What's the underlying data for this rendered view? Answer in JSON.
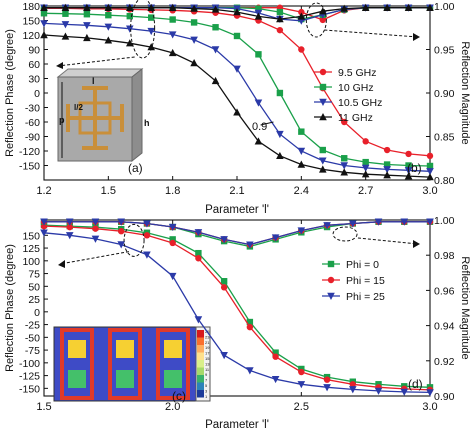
{
  "chart_data": [
    {
      "type": "line",
      "panel_label": "(b)",
      "inset_label": "(a)",
      "inset_dims": {
        "l": "l",
        "l2": "l/2",
        "p": "p",
        "h": "h"
      },
      "annotation": "0.9",
      "xlabel": "Parameter 'l'",
      "ylabel_left": "Reflection Phase (degree)",
      "ylabel_right": "Reflection Magnitude",
      "xlim": [
        1.2,
        3.0
      ],
      "ylim_left": [
        -180,
        180
      ],
      "ylim_right": [
        0.8,
        1.0
      ],
      "xticks": [
        "1.2",
        "1.5",
        "1.8",
        "2.1",
        "2.4",
        "2.7",
        "3.0"
      ],
      "yticks_left": [
        "180",
        "150",
        "120",
        "90",
        "60",
        "30",
        "0",
        "-30",
        "-60",
        "-90",
        "-120",
        "-150"
      ],
      "yticks_right": [
        "1.00",
        "0.95",
        "0.90",
        "0.85",
        "0.80"
      ],
      "legend_position": "right",
      "grid": false,
      "x": [
        1.2,
        1.3,
        1.4,
        1.5,
        1.6,
        1.7,
        1.8,
        1.9,
        2.0,
        2.1,
        2.2,
        2.3,
        2.4,
        2.5,
        2.6,
        2.7,
        2.8,
        2.9,
        3.0
      ],
      "series": [
        {
          "name": "9.5 GHz",
          "marker": "circle",
          "color": "#e8202a",
          "axis": "left",
          "values": [
            175,
            175,
            174,
            174,
            173,
            172,
            171,
            169,
            166,
            160,
            150,
            130,
            90,
            10,
            -60,
            -100,
            -118,
            -126,
            -130
          ]
        },
        {
          "name": "10 GHz",
          "marker": "square",
          "color": "#1aa04a",
          "axis": "left",
          "values": [
            165,
            164,
            163,
            161,
            159,
            156,
            152,
            146,
            136,
            118,
            80,
            0,
            -80,
            -118,
            -135,
            -143,
            -148,
            -150,
            -151
          ]
        },
        {
          "name": "10.5 GHz",
          "marker": "triangle-down",
          "color": "#2b3aa8",
          "axis": "left",
          "values": [
            144,
            142,
            140,
            137,
            133,
            128,
            121,
            110,
            90,
            50,
            -20,
            -85,
            -120,
            -140,
            -150,
            -155,
            -158,
            -160,
            -162
          ]
        },
        {
          "name": "11 GHz",
          "marker": "triangle-up",
          "color": "#111111",
          "axis": "left",
          "values": [
            120,
            117,
            114,
            109,
            103,
            95,
            83,
            62,
            25,
            -40,
            -100,
            -130,
            -148,
            -158,
            -164,
            -168,
            -170,
            -172,
            -174
          ]
        },
        {
          "name": "",
          "marker": "circle",
          "color": "#e8202a",
          "axis": "right",
          "values": [
            0.998,
            0.998,
            0.998,
            0.998,
            0.998,
            0.998,
            0.998,
            0.998,
            0.998,
            0.998,
            0.998,
            0.998,
            0.993,
            0.984,
            0.995,
            0.998,
            0.998,
            0.998,
            0.998
          ]
        },
        {
          "name": "",
          "marker": "square",
          "color": "#1aa04a",
          "axis": "right",
          "values": [
            0.998,
            0.998,
            0.998,
            0.998,
            0.998,
            0.998,
            0.998,
            0.998,
            0.998,
            0.998,
            0.997,
            0.993,
            0.985,
            0.99,
            0.996,
            0.998,
            0.998,
            0.998,
            0.998
          ]
        },
        {
          "name": "",
          "marker": "triangle-down",
          "color": "#2b3aa8",
          "axis": "right",
          "values": [
            0.998,
            0.998,
            0.998,
            0.998,
            0.998,
            0.998,
            0.998,
            0.998,
            0.998,
            0.997,
            0.992,
            0.985,
            0.983,
            0.99,
            0.996,
            0.998,
            0.998,
            0.998,
            0.998
          ]
        },
        {
          "name": "",
          "marker": "triangle-up",
          "color": "#111111",
          "axis": "right",
          "values": [
            0.998,
            0.998,
            0.998,
            0.998,
            0.998,
            0.998,
            0.998,
            0.997,
            0.996,
            0.993,
            0.988,
            0.985,
            0.988,
            0.994,
            0.997,
            0.998,
            0.998,
            0.998,
            0.998
          ]
        }
      ]
    },
    {
      "type": "line",
      "panel_label": "(d)",
      "inset_label": "(c)",
      "xlabel": "Parameter 'l'",
      "ylabel_left": "Reflection Phase (degree)",
      "ylabel_right": "Reflection Magnitude",
      "xlim": [
        1.5,
        3.0
      ],
      "ylim_left": [
        -165,
        180
      ],
      "ylim_right": [
        0.9,
        1.0
      ],
      "xticks": [
        "1.5",
        "2.0",
        "2.5",
        "3.0"
      ],
      "yticks_left": [
        "150",
        "125",
        "100",
        "75",
        "50",
        "25",
        "0",
        "-25",
        "-50",
        "-75",
        "-100",
        "-125",
        "-150"
      ],
      "yticks_right": [
        "1.00",
        "0.98",
        "0.96",
        "0.94",
        "0.92",
        "0.90"
      ],
      "legend_position": "right",
      "grid": false,
      "x": [
        1.5,
        1.6,
        1.7,
        1.8,
        1.9,
        2.0,
        2.1,
        2.2,
        2.3,
        2.4,
        2.5,
        2.6,
        2.7,
        2.8,
        2.9,
        3.0
      ],
      "series": [
        {
          "name": "Phi = 0",
          "marker": "square",
          "color": "#1aa04a",
          "axis": "left",
          "values": [
            170,
            168,
            166,
            162,
            155,
            142,
            115,
            60,
            -20,
            -80,
            -112,
            -128,
            -137,
            -142,
            -146,
            -148
          ]
        },
        {
          "name": "Phi = 15",
          "marker": "circle",
          "color": "#e8202a",
          "axis": "left",
          "values": [
            168,
            166,
            163,
            158,
            150,
            135,
            105,
            48,
            -30,
            -88,
            -118,
            -133,
            -142,
            -148,
            -151,
            -153
          ]
        },
        {
          "name": "Phi = 25",
          "marker": "triangle-down",
          "color": "#2b3aa8",
          "axis": "left",
          "values": [
            155,
            150,
            143,
            132,
            112,
            70,
            -15,
            -85,
            -115,
            -132,
            -142,
            -148,
            -152,
            -155,
            -157,
            -158
          ]
        },
        {
          "name": "",
          "marker": "square",
          "color": "#1aa04a",
          "axis": "right",
          "values": [
            0.999,
            0.999,
            0.999,
            0.999,
            0.998,
            0.996,
            0.992,
            0.988,
            0.985,
            0.989,
            0.993,
            0.996,
            0.998,
            0.999,
            0.999,
            0.999
          ]
        },
        {
          "name": "",
          "marker": "circle",
          "color": "#e8202a",
          "axis": "right",
          "values": [
            0.999,
            0.999,
            0.999,
            0.999,
            0.998,
            0.996,
            0.993,
            0.989,
            0.986,
            0.99,
            0.994,
            0.997,
            0.998,
            0.999,
            0.999,
            0.999
          ]
        },
        {
          "name": "",
          "marker": "triangle-down",
          "color": "#2b3aa8",
          "axis": "right",
          "values": [
            0.999,
            0.999,
            0.999,
            0.999,
            0.998,
            0.996,
            0.993,
            0.989,
            0.986,
            0.99,
            0.994,
            0.997,
            0.998,
            0.999,
            0.999,
            0.999
          ]
        }
      ],
      "colorbar_ticks": [
        "25",
        "23",
        "21",
        "19",
        "17",
        "15",
        "13",
        "11",
        "9",
        "7",
        "5",
        "3",
        "1"
      ]
    }
  ]
}
